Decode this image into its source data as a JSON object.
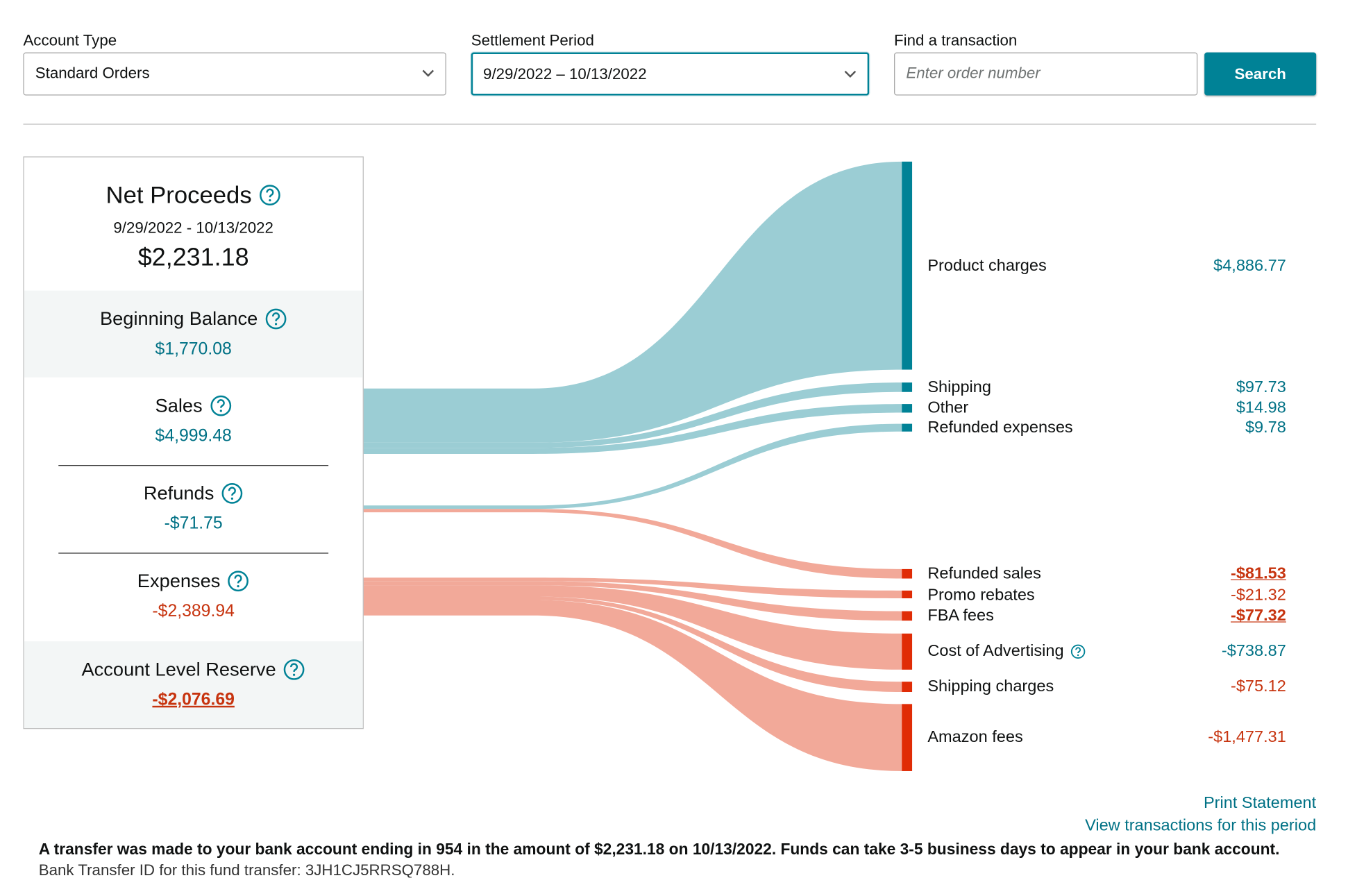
{
  "filters": {
    "account_type": {
      "label": "Account Type",
      "value": "Standard Orders"
    },
    "settlement_period": {
      "label": "Settlement Period",
      "value": "9/29/2022 – 10/13/2022"
    },
    "find_transaction": {
      "label": "Find a transaction",
      "placeholder": "Enter order number",
      "button": "Search"
    }
  },
  "summary": {
    "title": "Net Proceeds",
    "period": "9/29/2022 - 10/13/2022",
    "amount": "$2,231.18",
    "sections": [
      {
        "label": "Beginning Balance",
        "amount": "$1,770.08"
      },
      {
        "label": "Sales",
        "amount": "$4,999.48"
      },
      {
        "label": "Refunds",
        "amount": "-$71.75"
      },
      {
        "label": "Expenses",
        "amount": "-$2,389.94"
      },
      {
        "label": "Account Level Reserve",
        "amount": "-$2,076.69"
      }
    ]
  },
  "breakdown": [
    {
      "label": "Product charges",
      "amount": "$4,886.77"
    },
    {
      "label": "Shipping",
      "amount": "$97.73"
    },
    {
      "label": "Other",
      "amount": "$14.98"
    },
    {
      "label": "Refunded expenses",
      "amount": "$9.78"
    },
    {
      "label": "Refunded sales",
      "amount": "-$81.53"
    },
    {
      "label": "Promo rebates",
      "amount": "-$21.32"
    },
    {
      "label": "FBA fees",
      "amount": "-$77.32"
    },
    {
      "label": "Cost of Advertising",
      "amount": "-$738.87"
    },
    {
      "label": "Shipping charges",
      "amount": "-$75.12"
    },
    {
      "label": "Amazon fees",
      "amount": "-$1,477.31"
    }
  ],
  "links": [
    "Print Statement",
    "View transactions for this period"
  ],
  "notice": {
    "text": "A transfer was made to your bank account ending in 954 in the amount of $2,231.18 on 10/13/2022. Funds can take 3-5 business days to appear in your bank account.",
    "transfer_id": "Bank Transfer ID for this fund transfer: 3JH1CJ5RRSQ788H."
  }
}
